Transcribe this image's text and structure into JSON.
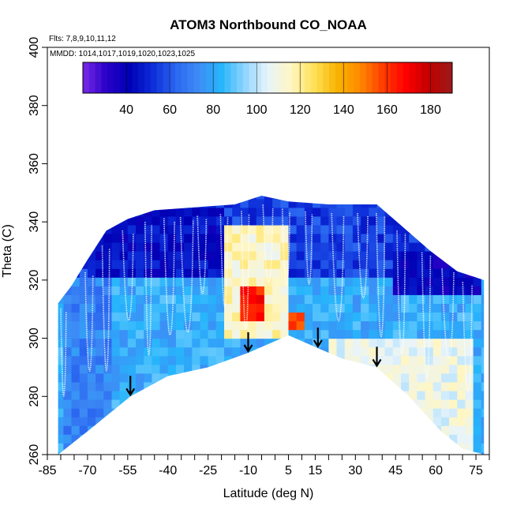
{
  "chart_data": {
    "type": "heatmap",
    "title": "ATOM3 Northbound CO_NOAA",
    "flights_note": "Flts: 7,8,9,10,11,12",
    "dates_note": "MMDD: 1014,1017,1019,1020,1023,1025",
    "xlabel": "Latitude (deg N)",
    "ylabel": "Theta (C)",
    "xlim": [
      -85,
      80
    ],
    "ylim": [
      260,
      400
    ],
    "x_tick_labels": [
      -85,
      -70,
      -55,
      -40,
      -25,
      -10,
      5,
      15,
      30,
      45,
      60,
      75
    ],
    "y_tick_labels": [
      260,
      280,
      300,
      320,
      340,
      360,
      380,
      400
    ],
    "colorbar": {
      "range": [
        20,
        190
      ],
      "tick_labels": [
        40,
        60,
        80,
        100,
        120,
        140,
        160,
        180
      ],
      "colors": [
        "#7a2ae8",
        "#2b00c8",
        "#0000b4",
        "#0c2bd8",
        "#2a66f0",
        "#3d8cf5",
        "#27b5fb",
        "#8fd4ff",
        "#e8f4fb",
        "#fff6c4",
        "#ffe25a",
        "#f7b400",
        "#ff8a00",
        "#ff3c00",
        "#ff0000",
        "#c00000",
        "#9c1a1a"
      ]
    },
    "arrows_at_latitude": [
      -54,
      -10,
      16,
      38
    ],
    "cross_section": {
      "top_theta_by_lat": [
        [
          -81,
          312
        ],
        [
          -76,
          318
        ],
        [
          -70,
          327
        ],
        [
          -63,
          337
        ],
        [
          -55,
          341
        ],
        [
          -45,
          344
        ],
        [
          -30,
          345
        ],
        [
          -15,
          346
        ],
        [
          -5,
          349
        ],
        [
          5,
          347
        ],
        [
          20,
          346
        ],
        [
          38,
          346
        ],
        [
          48,
          338
        ],
        [
          58,
          330
        ],
        [
          68,
          323
        ],
        [
          78,
          320
        ]
      ],
      "bottom_theta_by_lat": [
        [
          -81,
          260
        ],
        [
          -70,
          268
        ],
        [
          -54,
          280
        ],
        [
          -40,
          287
        ],
        [
          -25,
          290
        ],
        [
          -10,
          295
        ],
        [
          5,
          301
        ],
        [
          15,
          297
        ],
        [
          25,
          293
        ],
        [
          38,
          290
        ],
        [
          50,
          280
        ],
        [
          62,
          268
        ],
        [
          70,
          262
        ],
        [
          78,
          260
        ]
      ],
      "co_ppb_zones": [
        {
          "lat": [
            -80,
            -60
          ],
          "theta": [
            260,
            320
          ],
          "co": 70
        },
        {
          "lat": [
            -70,
            -20
          ],
          "theta": [
            320,
            345
          ],
          "co": 45
        },
        {
          "lat": [
            -20,
            5
          ],
          "theta": [
            300,
            340
          ],
          "co": 115
        },
        {
          "lat": [
            -12,
            -4
          ],
          "theta": [
            305,
            318
          ],
          "co": 165
        },
        {
          "lat": [
            5,
            10
          ],
          "theta": [
            303,
            308
          ],
          "co": 155
        },
        {
          "lat": [
            20,
            75
          ],
          "theta": [
            260,
            300
          ],
          "co": 108
        },
        {
          "lat": [
            45,
            78
          ],
          "theta": [
            315,
            330
          ],
          "co": 40
        }
      ]
    }
  }
}
